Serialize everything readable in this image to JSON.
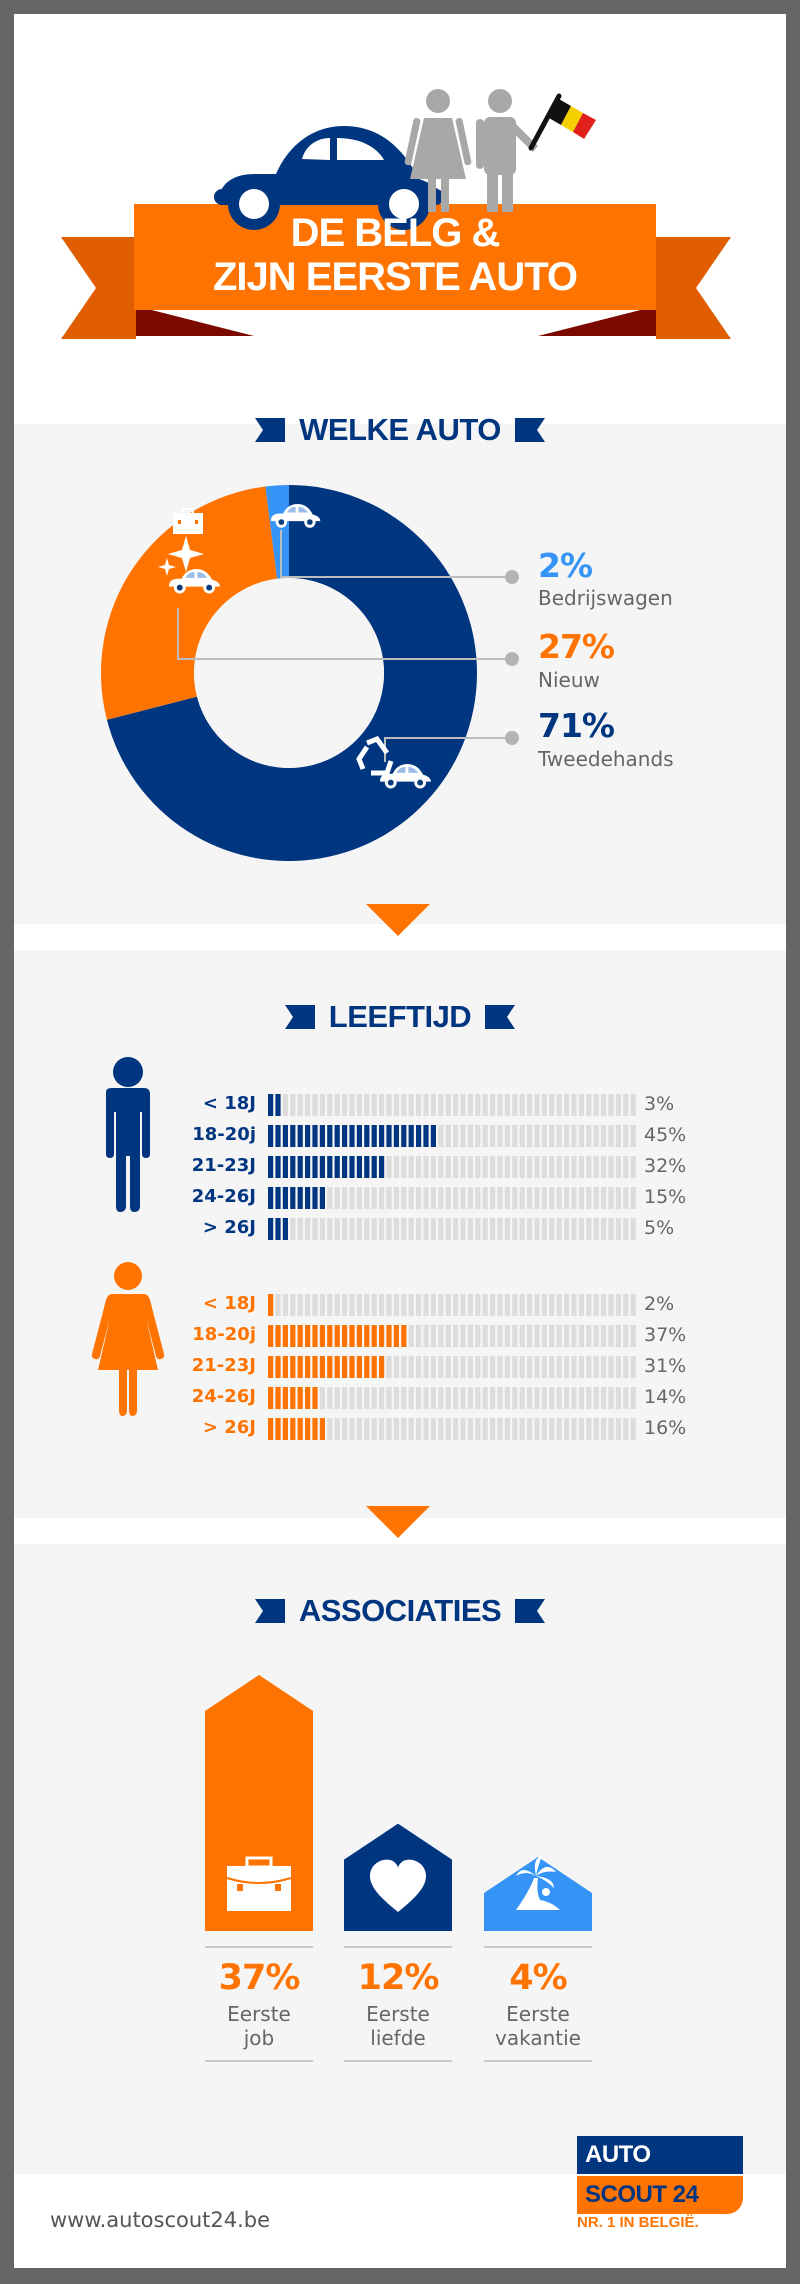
{
  "header": {
    "title_line1": "DE BELG &",
    "title_line2": "ZIJN EERSTE AUTO",
    "icons": [
      "car-icon",
      "woman-icon",
      "man-icon",
      "belgian-flag-icon"
    ]
  },
  "colors": {
    "orange": "#ff7300",
    "orange_dark": "#e05e00",
    "orange_shadow": "#7a0a00",
    "navy": "#003580",
    "light_blue": "#3594f5",
    "gray_figure": "#a8a8a8",
    "bar_empty": "#d9d9d9",
    "text_gray": "#666666",
    "flag_black": "#111111",
    "flag_yellow": "#f5d000",
    "flag_red": "#e0201b"
  },
  "sections": {
    "car_type": {
      "heading": "WELKE AUTO"
    },
    "age": {
      "heading": "LEEFTIJD"
    },
    "associations": {
      "heading": "ASSOCIATIES"
    }
  },
  "chart_data": [
    {
      "type": "pie",
      "title": "WELKE AUTO",
      "donut": true,
      "categories": [
        "Tweedehands",
        "Nieuw",
        "Bedrijswagen"
      ],
      "values": [
        71,
        27,
        2
      ],
      "labels": [
        "71%",
        "27%",
        "2%"
      ],
      "colors": [
        "#003580",
        "#ff7300",
        "#3594f5"
      ],
      "icons": [
        "recycle-car-icon",
        "new-car-sparkle-icon",
        "briefcase-car-icon"
      ],
      "legend": "right",
      "start": "top-clockwise"
    },
    {
      "type": "bar",
      "title": "LEEFTIJD",
      "orientation": "horizontal",
      "segments_total": 50,
      "categories": [
        "< 18J",
        "18-20j",
        "21-23J",
        "24-26J",
        "> 26J"
      ],
      "series": [
        {
          "name": "Man",
          "color": "#003580",
          "icon": "man-icon",
          "values": [
            3,
            45,
            32,
            15,
            5
          ],
          "labels": [
            "3%",
            "45%",
            "32%",
            "15%",
            "5%"
          ]
        },
        {
          "name": "Vrouw",
          "color": "#ff7300",
          "icon": "woman-icon",
          "values": [
            2,
            37,
            31,
            14,
            16
          ],
          "labels": [
            "2%",
            "37%",
            "31%",
            "14%",
            "16%"
          ]
        }
      ],
      "xlim": [
        0,
        100
      ]
    },
    {
      "type": "bar",
      "title": "ASSOCIATIES",
      "categories": [
        "Eerste job",
        "Eerste liefde",
        "Eerste vakantie"
      ],
      "values": [
        37,
        12,
        4
      ],
      "labels": [
        "37%",
        "12%",
        "4%"
      ],
      "label_line1": [
        "Eerste",
        "Eerste",
        "Eerste"
      ],
      "label_line2": [
        "job",
        "liefde",
        "vakantie"
      ],
      "colors": [
        "#ff7300",
        "#003580",
        "#3594f5"
      ],
      "icons": [
        "briefcase-icon",
        "heart-icon",
        "palm-island-icon"
      ]
    }
  ],
  "footer": {
    "url": "www.autoscout24.be",
    "logo_top": "AUTO",
    "logo_bottom": "SCOUT 24",
    "tagline": "NR. 1 IN BELGIË."
  }
}
